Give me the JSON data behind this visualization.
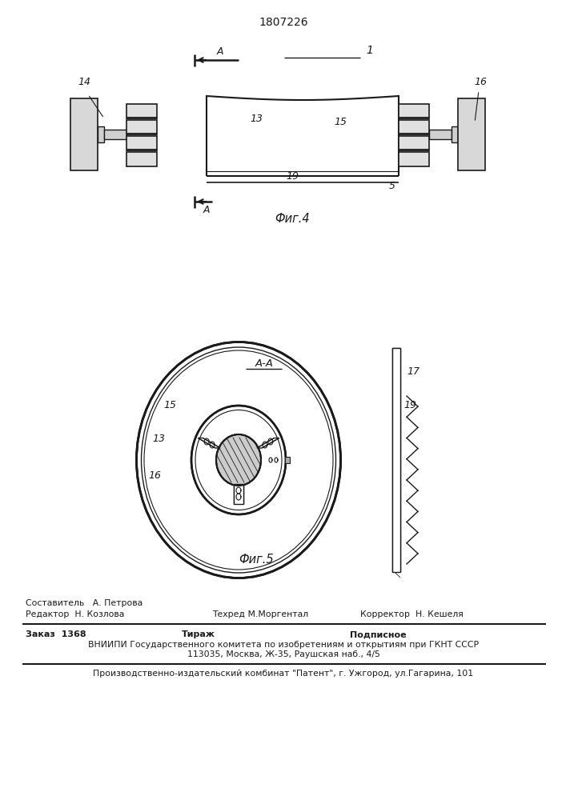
{
  "patent_number": "1807226",
  "fig4_caption": "Фиг.4",
  "fig5_caption": "Фиг.5",
  "section_aa": "A-A",
  "lc": "#1a1a1a",
  "footer_editor": "Редактор  Н. Козлова",
  "footer_compiler": "Составитель   А. Петрова",
  "footer_tech": "Техред М.Моргентал",
  "footer_corrector": "Корректор  Н. Кешеля",
  "footer_order": "Заказ  1368",
  "footer_tirazh": "Тираж",
  "footer_podp": "Подписное",
  "footer_vniipи": "ВНИИПИ Государственного комитета по изобретениям и открытиям при ГКНТ СССР",
  "footer_addr": "113035, Москва, Ж-35, Раушская наб., 4/5",
  "footer_patent": "Производственно-издательский комбинат \"Патент\", г. Ужгород, ул.Гагарина, 101"
}
